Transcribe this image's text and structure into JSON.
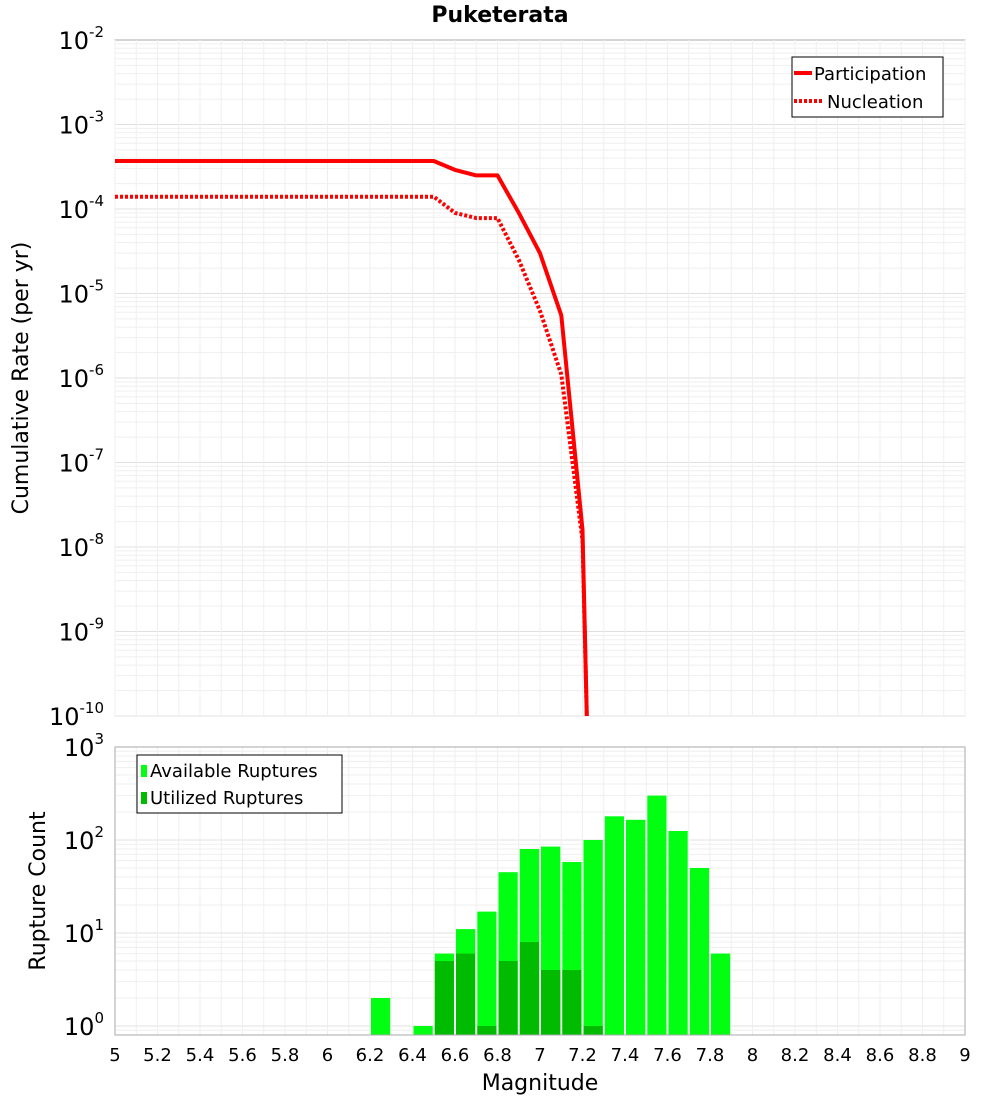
{
  "chart_data": [
    {
      "type": "line",
      "title": "Puketerata",
      "ylabel": "Cumulative Rate (per yr)",
      "xlabel": "",
      "xlim": [
        5,
        9
      ],
      "ylim_exp": [
        -10,
        -2
      ],
      "yscale": "log",
      "ytick_exponents": [
        "-10",
        "-9",
        "-8",
        "-7",
        "-6",
        "-5",
        "-4",
        "-3",
        "-2"
      ],
      "legend": {
        "position": "top-right",
        "entries": [
          "Participation",
          "Nucleation"
        ]
      },
      "series": [
        {
          "name": "Participation",
          "style": "solid",
          "color": "#ff0000",
          "points": [
            [
              5.0,
              0.00037
            ],
            [
              6.5,
              0.00037
            ],
            [
              6.6,
              0.00029
            ],
            [
              6.7,
              0.00025
            ],
            [
              6.8,
              0.00025
            ],
            [
              6.9,
              9e-05
            ],
            [
              7.0,
              3e-05
            ],
            [
              7.1,
              5.5e-06
            ],
            [
              7.2,
              1.6e-08
            ],
            [
              7.22,
              1e-10
            ]
          ]
        },
        {
          "name": "Nucleation",
          "style": "dotted",
          "color": "#ff0000",
          "points": [
            [
              5.0,
              0.00014
            ],
            [
              6.5,
              0.00014
            ],
            [
              6.6,
              9e-05
            ],
            [
              6.7,
              7.8e-05
            ],
            [
              6.8,
              7.8e-05
            ],
            [
              6.9,
              2.5e-05
            ],
            [
              7.0,
              6.2e-06
            ],
            [
              7.1,
              1.1e-06
            ],
            [
              7.2,
              1.2e-08
            ],
            [
              7.22,
              1e-10
            ]
          ]
        }
      ]
    },
    {
      "type": "bar",
      "title": "",
      "xlabel": "Magnitude",
      "ylabel": "Rupture Count",
      "xlim": [
        5,
        9
      ],
      "ylim": [
        0.8,
        1000
      ],
      "yscale": "log",
      "ytick_exponents": [
        "0",
        "1",
        "2",
        "3"
      ],
      "xticks": [
        "5",
        "5.2",
        "5.4",
        "5.6",
        "5.8",
        "6",
        "6.2",
        "6.4",
        "6.6",
        "6.8",
        "7",
        "7.2",
        "7.4",
        "7.6",
        "7.8",
        "8",
        "8.2",
        "8.4",
        "8.6",
        "8.8",
        "9"
      ],
      "legend": {
        "position": "top-left",
        "entries": [
          "Available Ruptures",
          "Utilized Ruptures"
        ]
      },
      "bin_width": 0.1,
      "series": [
        {
          "name": "Available Ruptures",
          "color": "#00ff11",
          "bins": [
            [
              6.25,
              2
            ],
            [
              6.45,
              1
            ],
            [
              6.55,
              6
            ],
            [
              6.65,
              11
            ],
            [
              6.75,
              17
            ],
            [
              6.85,
              45
            ],
            [
              6.95,
              80
            ],
            [
              7.05,
              85
            ],
            [
              7.15,
              58
            ],
            [
              7.25,
              100
            ],
            [
              7.35,
              180
            ],
            [
              7.45,
              165
            ],
            [
              7.55,
              300
            ],
            [
              7.65,
              125
            ],
            [
              7.75,
              50
            ],
            [
              7.85,
              6
            ]
          ]
        },
        {
          "name": "Utilized Ruptures",
          "color": "#00bb00",
          "bins": [
            [
              6.55,
              5
            ],
            [
              6.65,
              6
            ],
            [
              6.75,
              1
            ],
            [
              6.85,
              5
            ],
            [
              6.95,
              8
            ],
            [
              7.05,
              4
            ],
            [
              7.15,
              4
            ],
            [
              7.25,
              1
            ]
          ]
        }
      ]
    }
  ]
}
